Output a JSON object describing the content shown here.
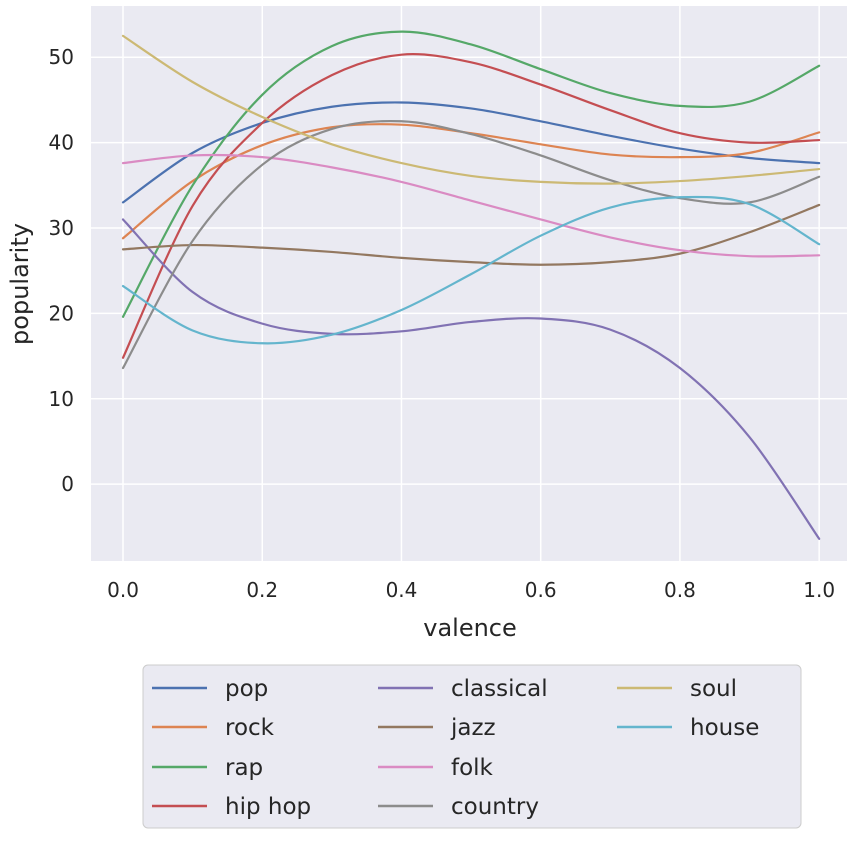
{
  "chart_data": {
    "type": "line",
    "title": "",
    "xlabel": "valence",
    "ylabel": "popularity",
    "xlim": [
      -0.046,
      1.04
    ],
    "ylim": [
      -9,
      56
    ],
    "xticks": [
      0.0,
      0.2,
      0.4,
      0.6,
      0.8,
      1.0
    ],
    "xtick_labels": [
      "0.0",
      "0.2",
      "0.4",
      "0.6",
      "0.8",
      "1.0"
    ],
    "yticks": [
      0,
      10,
      20,
      30,
      40,
      50
    ],
    "ytick_labels": [
      "0",
      "10",
      "20",
      "30",
      "40",
      "50"
    ],
    "grid": true,
    "legend_placement": "below",
    "x": [
      0.0,
      0.1,
      0.2,
      0.3,
      0.4,
      0.5,
      0.6,
      0.7,
      0.8,
      0.9,
      1.0
    ],
    "series": [
      {
        "name": "pop",
        "color": "#4c72b0",
        "values": [
          33.0,
          38.8,
          42.3,
          44.2,
          44.7,
          44.0,
          42.5,
          40.8,
          39.3,
          38.2,
          37.6
        ]
      },
      {
        "name": "rock",
        "color": "#dd8452",
        "values": [
          28.8,
          35.5,
          39.7,
          41.8,
          42.1,
          41.1,
          39.8,
          38.6,
          38.3,
          38.8,
          41.2
        ]
      },
      {
        "name": "rap",
        "color": "#55a868",
        "values": [
          19.6,
          35.0,
          45.6,
          51.3,
          53.0,
          51.5,
          48.6,
          45.8,
          44.3,
          44.8,
          49.0
        ]
      },
      {
        "name": "hip hop",
        "color": "#c44e52",
        "values": [
          14.8,
          32.6,
          42.3,
          47.9,
          50.3,
          49.4,
          46.8,
          43.8,
          41.1,
          40.0,
          40.3
        ]
      },
      {
        "name": "classical",
        "color": "#8172b3",
        "values": [
          31.0,
          22.5,
          18.8,
          17.6,
          17.9,
          19.0,
          19.4,
          18.1,
          13.6,
          5.5,
          -6.4
        ]
      },
      {
        "name": "jazz",
        "color": "#937860",
        "values": [
          27.5,
          28.0,
          27.7,
          27.2,
          26.5,
          26.0,
          25.7,
          26.0,
          27.0,
          29.5,
          32.7
        ]
      },
      {
        "name": "folk",
        "color": "#da8bc3",
        "values": [
          37.6,
          38.5,
          38.3,
          37.1,
          35.4,
          33.2,
          31.0,
          28.9,
          27.4,
          26.7,
          26.8
        ]
      },
      {
        "name": "country",
        "color": "#8c8c8c",
        "values": [
          13.6,
          28.5,
          37.4,
          41.6,
          42.5,
          41.0,
          38.5,
          35.6,
          33.5,
          33.0,
          36.0
        ]
      },
      {
        "name": "soul",
        "color": "#ccb974",
        "values": [
          52.5,
          47.1,
          43.0,
          39.8,
          37.6,
          36.1,
          35.4,
          35.2,
          35.5,
          36.1,
          36.9
        ]
      },
      {
        "name": "house",
        "color": "#64b5cd",
        "values": [
          23.2,
          18.0,
          16.5,
          17.5,
          20.4,
          24.6,
          29.1,
          32.4,
          33.6,
          32.8,
          28.1
        ]
      }
    ]
  },
  "colors": {
    "plot_background": "#eaeaf2",
    "grid": "#ffffff",
    "legend_border": "#cccccc",
    "text": "#262626"
  }
}
